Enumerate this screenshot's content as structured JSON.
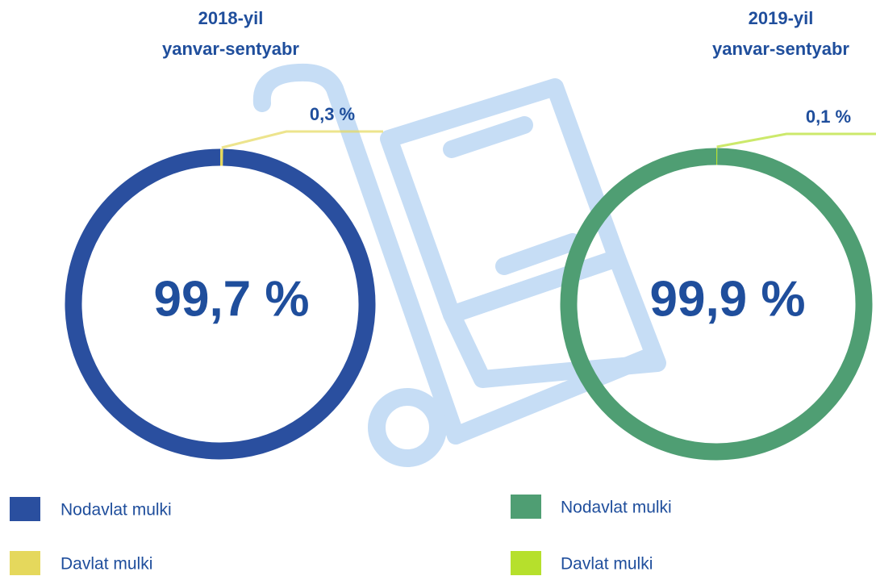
{
  "chart_data": [
    {
      "type": "donut",
      "title": [
        "2018-yil",
        "yanvar-sentyabr"
      ],
      "categories": [
        "Nodavlat mulki",
        "Davlat mulki"
      ],
      "values": [
        99.7,
        0.3
      ],
      "value_labels": [
        "99,7 %",
        "0,3 %"
      ],
      "colors": [
        "#2a4f9f",
        "#e5d85c"
      ]
    },
    {
      "type": "donut",
      "title": [
        "2019-yil",
        "yanvar-sentyabr"
      ],
      "categories": [
        "Nodavlat mulki",
        "Davlat mulki"
      ],
      "values": [
        99.9,
        0.1
      ],
      "value_labels": [
        "99,9 %",
        "0,1 %"
      ],
      "colors": [
        "#4f9e73",
        "#b6e02c"
      ]
    }
  ]
}
